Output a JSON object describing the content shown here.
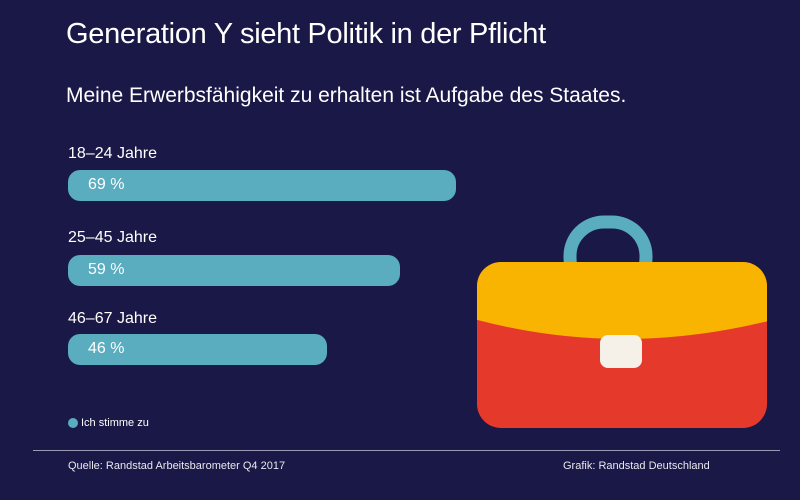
{
  "chart_data": {
    "type": "bar",
    "orientation": "horizontal",
    "title": "Generation Y sieht Politik in der Pflicht",
    "subtitle": "Meine Erwerbsfähigkeit zu erhalten ist Aufgabe des Staates.",
    "categories": [
      "18–24 Jahre",
      "25–45 Jahre",
      "46–67 Jahre"
    ],
    "series": [
      {
        "name": "Ich stimme zu",
        "values": [
          69,
          59,
          46
        ],
        "color": "#5aacbf"
      }
    ],
    "data_labels": [
      "69 %",
      "59 %",
      "46 %"
    ],
    "xlim": [
      0,
      100
    ],
    "grid": false,
    "legend": "bottom-left"
  },
  "footer": {
    "source": "Quelle: Randstad Arbeitsbarometer Q4 2017",
    "credit": "Grafik: Randstad Deutschland"
  },
  "illustration": {
    "icon": "briefcase-icon",
    "colors": {
      "handle": "#5aacbf",
      "top": "#f8b400",
      "bottom": "#e5392b",
      "clasp": "#f5f0e8"
    }
  },
  "colors": {
    "background": "#191846"
  }
}
